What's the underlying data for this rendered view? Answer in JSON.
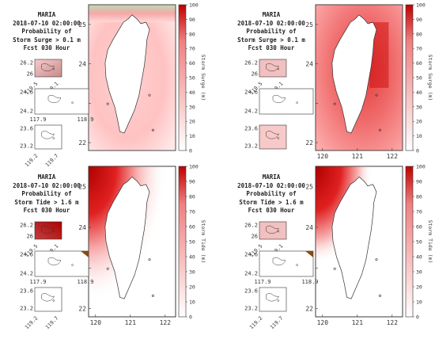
{
  "colors": {
    "high": "#c00000",
    "mid": "#f08080",
    "low": "#ffffff",
    "outline": "#333333"
  },
  "colorbar": {
    "ticks": [
      0,
      10,
      20,
      30,
      40,
      50,
      60,
      70,
      80,
      90,
      100
    ]
  },
  "chart_data": [
    {
      "type": "heatmap",
      "title": [
        "MARIA",
        "2018-07-10 02:00:00",
        "Probability of",
        "Storm Surge > 0.1 m",
        "Fcst 030 Hour"
      ],
      "colorbar_label": "Storm Surge (m)",
      "colorbar_ticks": [
        0,
        10,
        20,
        30,
        40,
        50,
        60,
        70,
        80,
        90,
        100
      ],
      "yticks": [
        "25",
        "24",
        "23",
        "22"
      ],
      "xticks": [],
      "ylim": [
        21.8,
        25.5
      ],
      "xlim": [
        119.8,
        122.3
      ],
      "inset_ticks": {
        "penghu_y": [
          "24.6",
          "24.2"
        ],
        "penghu_x": [
          "117.9",
          "118.9"
        ],
        "matsu_y": [
          "26.2",
          "26"
        ],
        "matsu_x": [
          "119.5",
          "120.1"
        ],
        "kinmen_y": [
          "23.6",
          "23.2"
        ],
        "kinmen_x": [
          "119.2",
          "119.7"
        ]
      }
    },
    {
      "type": "heatmap",
      "title": [
        "MARIA",
        "2018-07-10 02:00:00",
        "Probability of",
        "Storm Surge > 0.1 m",
        "Fcst 030 Hour"
      ],
      "colorbar_label": "Storm Surge (m)",
      "colorbar_ticks": [
        0,
        10,
        20,
        30,
        40,
        50,
        60,
        70,
        80,
        90,
        100
      ],
      "yticks": [
        "25",
        "24",
        "23",
        "22"
      ],
      "xticks": [
        "120",
        "121",
        "122"
      ],
      "ylim": [
        21.8,
        25.5
      ],
      "xlim": [
        119.8,
        122.3
      ],
      "inset_ticks": {
        "penghu_y": [
          "24.6",
          "24.2"
        ],
        "penghu_x": [],
        "matsu_y": [
          "26.2",
          "26"
        ],
        "matsu_x": [
          "119.5",
          "120.1"
        ],
        "kinmen_y": [
          "23.6",
          "23.2"
        ],
        "kinmen_x": []
      }
    },
    {
      "type": "heatmap",
      "title": [
        "MARIA",
        "2018-07-10 02:00:00",
        "Probability of",
        "Storm Tide > 1.6 m",
        "Fcst 030 Hour"
      ],
      "colorbar_label": "Storm Tide (m)",
      "colorbar_ticks": [
        0,
        10,
        20,
        30,
        40,
        50,
        60,
        70,
        80,
        90,
        100
      ],
      "yticks": [
        "25",
        "24",
        "23",
        "22"
      ],
      "xticks": [
        "120",
        "121",
        "122"
      ],
      "ylim": [
        21.8,
        25.5
      ],
      "xlim": [
        119.8,
        122.3
      ],
      "inset_ticks": {
        "penghu_y": [
          "24.6",
          "24.2"
        ],
        "penghu_x": [
          "117.9",
          "118.9"
        ],
        "matsu_y": [
          "26.2",
          "26"
        ],
        "matsu_x": [
          "119.5",
          "120.1"
        ],
        "kinmen_y": [
          "23.6",
          "23.2"
        ],
        "kinmen_x": [
          "119.2",
          "119.7"
        ]
      }
    },
    {
      "type": "heatmap",
      "title": [
        "MARIA",
        "2018-07-10 02:00:00",
        "Probability of",
        "Storm Tide > 1.6 m",
        "Fcst 030 Hour"
      ],
      "colorbar_label": "Storm Tide (m)",
      "colorbar_ticks": [
        0,
        10,
        20,
        30,
        40,
        50,
        60,
        70,
        80,
        90,
        100
      ],
      "yticks": [
        "25",
        "24",
        "23",
        "22"
      ],
      "xticks": [
        "120",
        "121",
        "122"
      ],
      "ylim": [
        21.8,
        25.5
      ],
      "xlim": [
        119.8,
        122.3
      ],
      "inset_ticks": {
        "penghu_y": [
          "24.6",
          "24.2"
        ],
        "penghu_x": [
          "117.9",
          "118.9"
        ],
        "matsu_y": [
          "26.2",
          "26"
        ],
        "matsu_x": [
          "119.5",
          "120.1"
        ],
        "kinmen_y": [
          "23.6",
          "23.2"
        ],
        "kinmen_x": [
          "119.2",
          "119.7"
        ]
      }
    }
  ]
}
